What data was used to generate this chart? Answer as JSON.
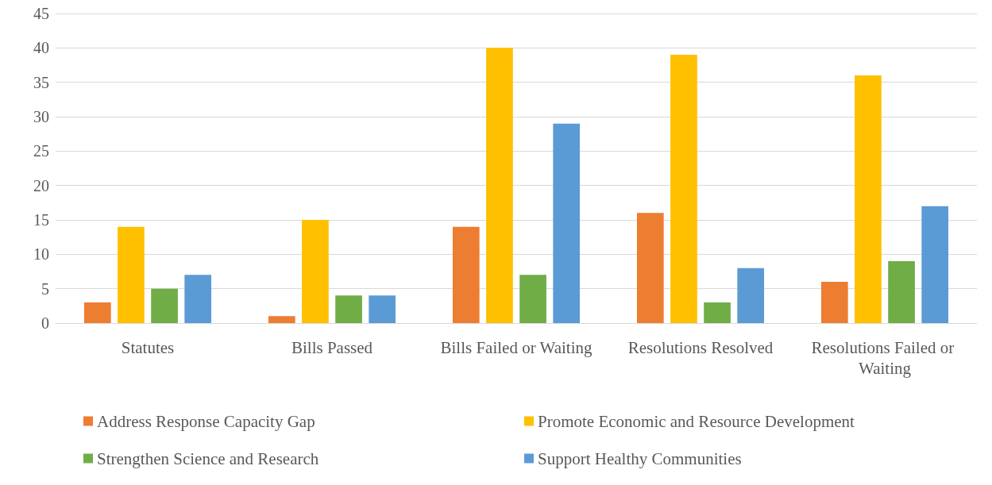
{
  "chart_data": {
    "type": "bar",
    "categories": [
      "Statutes",
      "Bills Passed",
      "Bills Failed or Waiting",
      "Resolutions Resolved",
      "Resolutions Failed or Waiting"
    ],
    "series": [
      {
        "name": "Address Response Capacity Gap",
        "color": "#ed7d31",
        "values": [
          3,
          1,
          14,
          16,
          6
        ]
      },
      {
        "name": "Promote Economic and Resource Development",
        "color": "#ffc000",
        "values": [
          14,
          15,
          40,
          39,
          36
        ]
      },
      {
        "name": "Strengthen Science and Research",
        "color": "#70ad47",
        "values": [
          5,
          4,
          7,
          3,
          9
        ]
      },
      {
        "name": "Support Healthy Communities",
        "color": "#5b9bd5",
        "values": [
          7,
          4,
          29,
          8,
          17
        ]
      }
    ],
    "ylim": [
      0,
      45
    ],
    "yticks": [
      0,
      5,
      10,
      15,
      20,
      25,
      30,
      35,
      40,
      45
    ],
    "grid": "y",
    "legend": "bottom"
  }
}
